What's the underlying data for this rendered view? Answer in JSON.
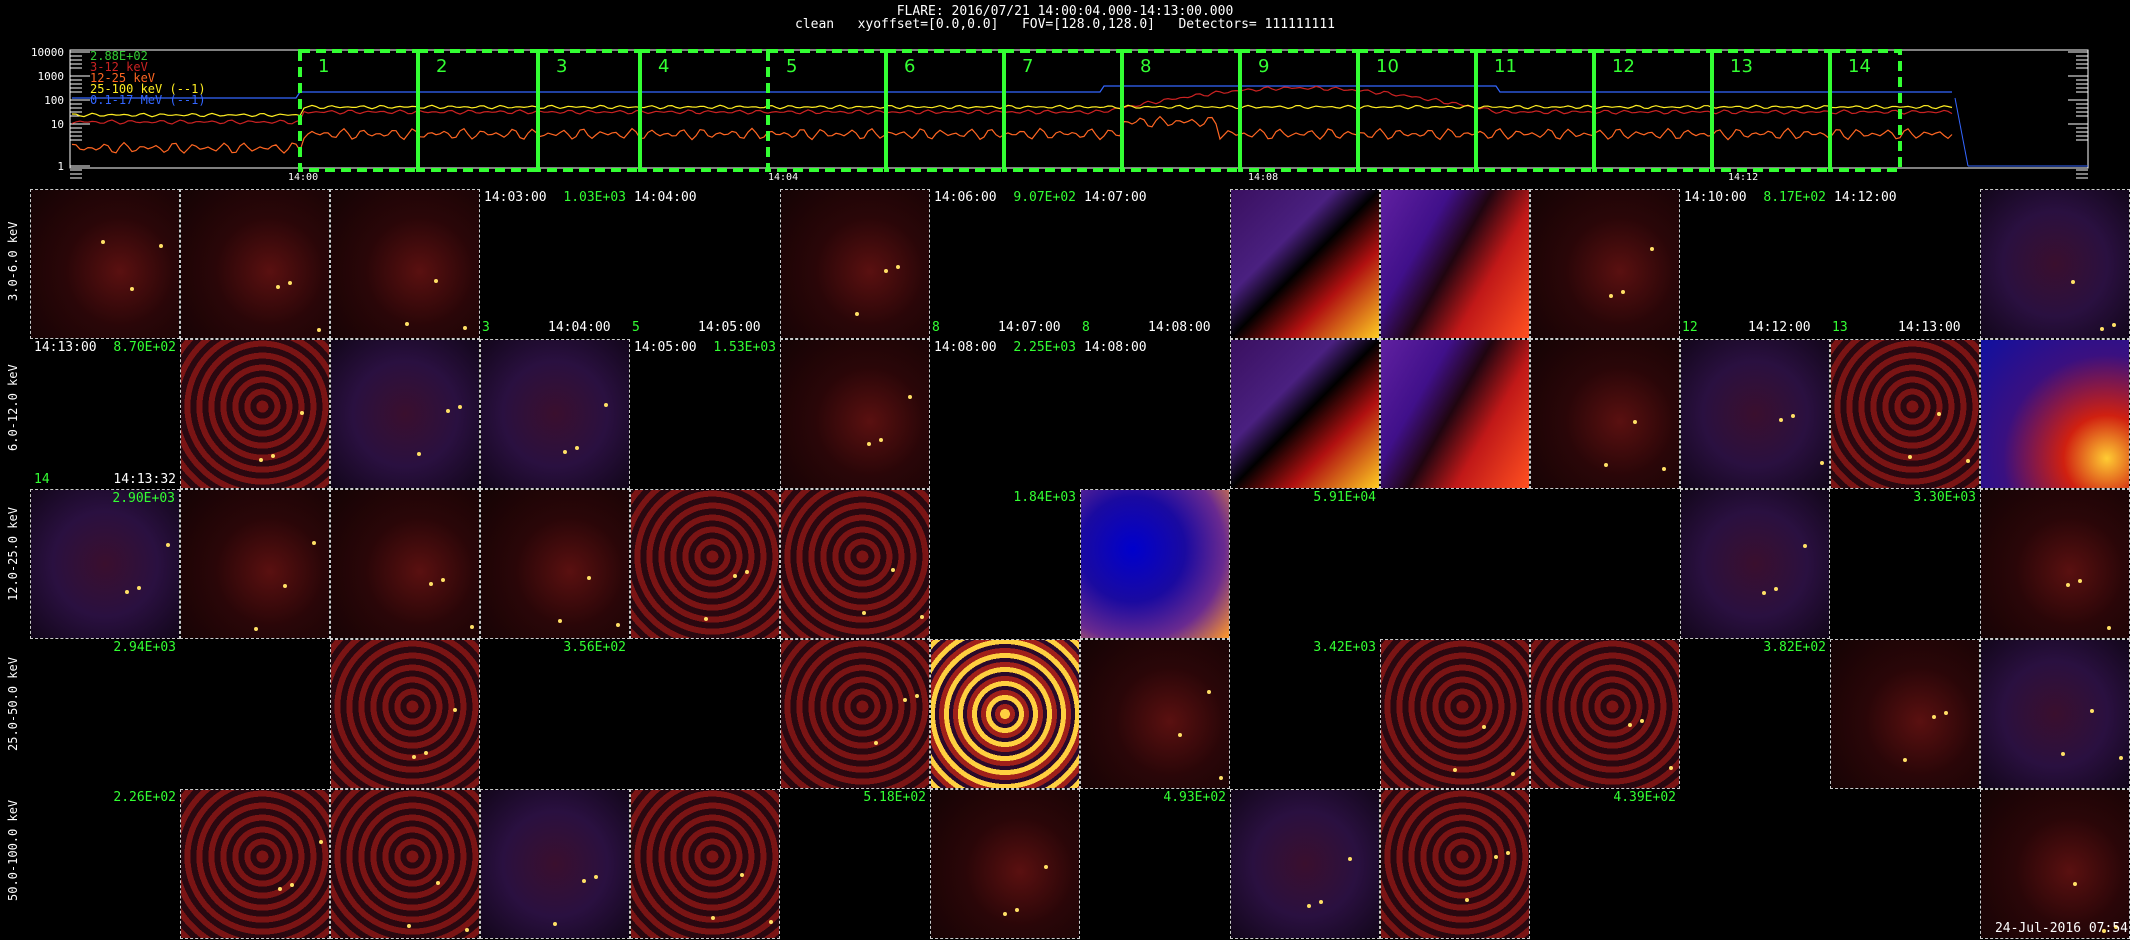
{
  "header": {
    "line1": "FLARE: 2016/07/21 14:00:04.000-14:13:00.000",
    "line2": "clean   xyoffset=[0.0,0.0]   FOV=[128.0,128.0]   Detectors= 111111111"
  },
  "lightcurve": {
    "y_ticks": [
      "10000",
      "1000",
      "100",
      "10",
      "1"
    ],
    "x_ticks": [
      "14:00",
      "14:04",
      "14:08",
      "14:12"
    ],
    "legend": [
      {
        "label": "2.88E+02",
        "color": "#33cc33"
      },
      {
        "label": "3-12 keV",
        "color": "#cc2222"
      },
      {
        "label": "12-25 keV",
        "color": "#ff6622"
      },
      {
        "label": "25-100 keV (--1)",
        "color": "#ffee22"
      },
      {
        "label": "0.1-17 MeV (--1)",
        "color": "#3366ff"
      }
    ],
    "interval_labels": [
      "1",
      "2",
      "3",
      "4",
      "5",
      "6",
      "7",
      "8",
      "9",
      "10",
      "11",
      "12",
      "13",
      "14"
    ]
  },
  "grid": {
    "rows": [
      {
        "label": "3.0-6.0 keV",
        "cells": [
          {
            "k": "dot"
          },
          {
            "k": "dot"
          },
          {
            "k": "dot"
          },
          {
            "k": "blank",
            "tl": "14:03:00",
            "tr": "1.03E+03"
          },
          {
            "k": "blank",
            "tl": "14:04:00"
          },
          {
            "k": "dot"
          },
          {
            "k": "blank",
            "tl": "14:06:00",
            "tr": "9.07E+02"
          },
          {
            "k": "blank",
            "tl": "14:07:00"
          },
          {
            "k": "flareA"
          },
          {
            "k": "flareB"
          },
          {
            "k": "dot"
          },
          {
            "k": "blank",
            "tl": "14:10:00",
            "tr": "8.17E+02"
          },
          {
            "k": "blank",
            "tl": "14:12:00"
          },
          {
            "k": "purple"
          }
        ]
      },
      {
        "label": "6.0-12.0 keV",
        "cells": [
          {
            "k": "blank",
            "tl": "14:13:00",
            "tr": "8.70E+02",
            "bl": "14",
            "br": "14:13:32"
          },
          {
            "k": "ripple"
          },
          {
            "k": "purple"
          },
          {
            "k": "purple"
          },
          {
            "k": "blank",
            "tl": "14:05:00",
            "tr": "1.53E+03"
          },
          {
            "k": "dot"
          },
          {
            "k": "blank",
            "tl": "14:08:00",
            "tr": "2.25E+03"
          },
          {
            "k": "blank",
            "tl": "14:08:00"
          },
          {
            "k": "flareA"
          },
          {
            "k": "flareB"
          },
          {
            "k": "dot"
          },
          {
            "k": "purple"
          },
          {
            "k": "ripple"
          },
          {
            "k": "hot"
          }
        ]
      },
      {
        "label": "12.0-25.0 keV",
        "cells": [
          {
            "k": "purple",
            "tr": "2.90E+03"
          },
          {
            "k": "dot"
          },
          {
            "k": "dot"
          },
          {
            "k": "dot"
          },
          {
            "k": "ripple"
          },
          {
            "k": "ripple"
          },
          {
            "k": "blank",
            "tr": "1.84E+03"
          },
          {
            "k": "bluecore"
          },
          {
            "k": "blank",
            "tr": "5.91E+04"
          },
          {
            "k": "blank"
          },
          {
            "k": "blank"
          },
          {
            "k": "purple"
          },
          {
            "k": "blank",
            "tr": "3.30E+03"
          },
          {
            "k": "dot"
          }
        ]
      },
      {
        "label": "25.0-50.0 keV",
        "cells": [
          {
            "k": "blank",
            "tr": "2.94E+03"
          },
          {
            "k": "blank"
          },
          {
            "k": "ripple"
          },
          {
            "k": "blank",
            "tr": "3.56E+02"
          },
          {
            "k": "blank"
          },
          {
            "k": "ripple"
          },
          {
            "k": "yellowgrid"
          },
          {
            "k": "dot"
          },
          {
            "k": "blank",
            "tr": "3.42E+03"
          },
          {
            "k": "ripple"
          },
          {
            "k": "ripple"
          },
          {
            "k": "blank",
            "tr": "3.82E+02"
          },
          {
            "k": "dot"
          },
          {
            "k": "purple"
          }
        ]
      },
      {
        "label": "50.0-100.0 keV",
        "cells": [
          {
            "k": "blank",
            "tr": "2.26E+02"
          },
          {
            "k": "ripple"
          },
          {
            "k": "ripple"
          },
          {
            "k": "purple"
          },
          {
            "k": "ripple"
          },
          {
            "k": "blank",
            "tr": "5.18E+02"
          },
          {
            "k": "dot"
          },
          {
            "k": "blank",
            "tr": "4.93E+02"
          },
          {
            "k": "purple"
          },
          {
            "k": "ripple"
          },
          {
            "k": "blank",
            "tr": "4.39E+02"
          },
          {
            "k": "blank"
          },
          {
            "k": "blank"
          },
          {
            "k": "dot"
          }
        ]
      }
    ]
  },
  "row2_overlay": [
    {
      "tl": "3",
      "tr": "14:04:00"
    },
    {
      "tl": "5",
      "tr": "14:05:00"
    },
    {
      "tl": "8",
      "tr": "14:07:00"
    },
    {
      "tl": "8",
      "tr": "14:08:00"
    },
    {
      "tl": "12",
      "tr": "14:12:00"
    },
    {
      "tl": "13",
      "tr": "14:13:00"
    }
  ],
  "footer": {
    "timestamp": "24-Jul-2016 07:54"
  }
}
